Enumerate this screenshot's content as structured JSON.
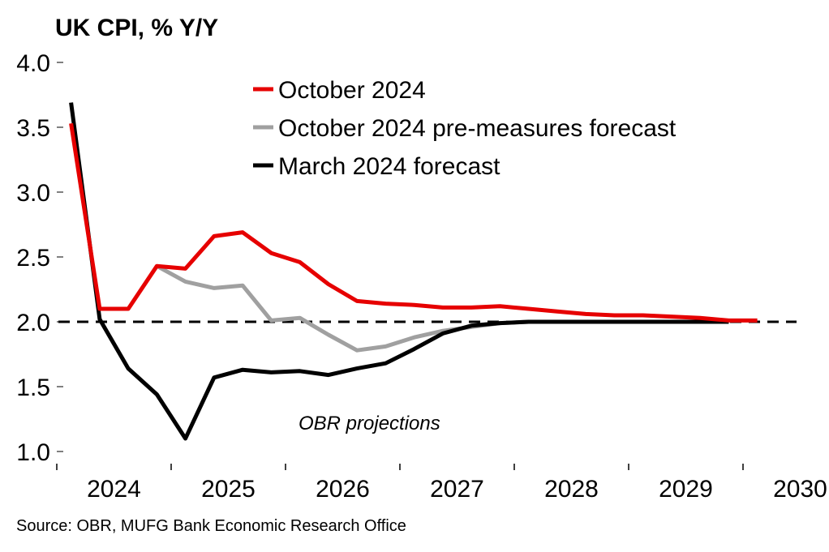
{
  "chart_data": {
    "type": "line",
    "title": "UK CPI, % Y/Y",
    "xlabel": "",
    "ylabel": "",
    "ylim": [
      1.0,
      4.0
    ],
    "yticks": [
      "4.0",
      "3.5",
      "3.0",
      "2.5",
      "2.0",
      "1.5",
      "1.0"
    ],
    "ytick_values": [
      4.0,
      3.5,
      3.0,
      2.5,
      2.0,
      1.5,
      1.0
    ],
    "xticks": [
      "2024",
      "2025",
      "2026",
      "2027",
      "2028",
      "2029",
      "2030"
    ],
    "x_frequency": "quarterly",
    "x_start": "2024 Q1",
    "grid": false,
    "legend_position": "top-center",
    "reference_line": {
      "value": 2.0,
      "style": "dashed",
      "color": "#000000"
    },
    "annotation": "OBR projections",
    "source": "Source: OBR, MUFG Bank Economic Research Office",
    "series": [
      {
        "name": "October 2024",
        "color": "#e60000",
        "start_index": 0,
        "values": [
          3.53,
          2.1,
          2.1,
          2.43,
          2.41,
          2.66,
          2.69,
          2.53,
          2.46,
          2.29,
          2.16,
          2.14,
          2.13,
          2.11,
          2.11,
          2.12,
          2.1,
          2.08,
          2.06,
          2.05,
          2.05,
          2.04,
          2.03,
          2.01,
          2.01
        ]
      },
      {
        "name": "October 2024 pre-measures forecast",
        "color": "#a0a0a0",
        "start_index": 3,
        "values": [
          2.43,
          2.31,
          2.26,
          2.28,
          2.01,
          2.03,
          1.9,
          1.78,
          1.81,
          1.88,
          1.93,
          1.96,
          1.99,
          2.0,
          2.0,
          2.0,
          2.0,
          2.0,
          2.0,
          2.0,
          2.0
        ]
      },
      {
        "name": "March 2024 forecast",
        "color": "#000000",
        "start_index": 0,
        "values": [
          3.69,
          2.02,
          1.64,
          1.44,
          1.1,
          1.57,
          1.63,
          1.61,
          1.62,
          1.59,
          1.64,
          1.68,
          1.79,
          1.91,
          1.97,
          1.99,
          2.0,
          2.0,
          2.0,
          2.0,
          2.0,
          2.0,
          2.0,
          2.0
        ]
      }
    ]
  }
}
